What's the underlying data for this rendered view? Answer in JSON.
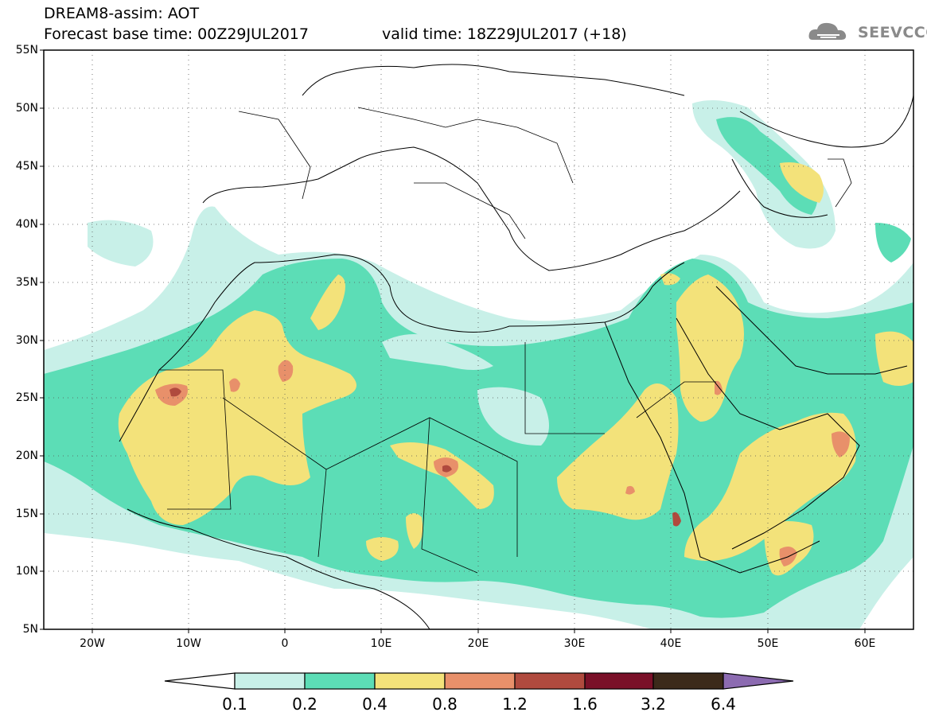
{
  "header": {
    "title": "DREAM8-assim: AOT",
    "base_time": "Forecast base time: 00Z29JUL2017",
    "valid_time": "valid time: 18Z29JUL2017 (+18)",
    "logo_text": "SEEVCCC"
  },
  "map": {
    "lat_labels": [
      "55N",
      "50N",
      "45N",
      "40N",
      "35N",
      "30N",
      "25N",
      "20N",
      "15N",
      "10N",
      "5N"
    ],
    "lon_labels": [
      "20W",
      "10W",
      "0",
      "10E",
      "20E",
      "30E",
      "40E",
      "50E",
      "60E"
    ],
    "extent": {
      "lon": [
        -25,
        65
      ],
      "lat": [
        5,
        55
      ]
    }
  },
  "colorbar": {
    "labels": [
      "0.1",
      "0.2",
      "0.4",
      "0.8",
      "1.2",
      "1.6",
      "3.2",
      "6.4"
    ],
    "colors": [
      "#ffffff",
      "#c8f0e8",
      "#5cddb6",
      "#f3e27a",
      "#e8906a",
      "#b04a3e",
      "#7a1028",
      "#3c2a1a",
      "#8c6bb1"
    ]
  },
  "legend_colors": {
    "aot_0_1": "#c8f0e8",
    "aot_0_2": "#5cddb6",
    "aot_0_4": "#f3e27a",
    "aot_0_8": "#e8906a",
    "aot_1_2": "#b04a3e"
  }
}
